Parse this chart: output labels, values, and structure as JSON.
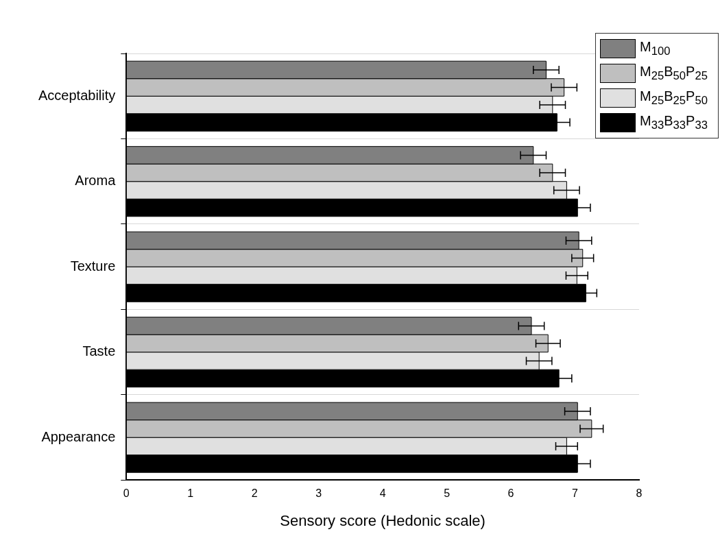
{
  "chart_data": {
    "type": "bar",
    "orientation": "horizontal",
    "xlabel": "Sensory score (Hedonic scale)",
    "categories": [
      "Acceptability",
      "Aroma",
      "Texture",
      "Taste",
      "Appearance"
    ],
    "series": [
      {
        "name": "M$_{100}$",
        "color": "#808080",
        "values": [
          6.55,
          6.35,
          7.06,
          6.32,
          7.04
        ],
        "errors": [
          0.2,
          0.2,
          0.2,
          0.2,
          0.2
        ]
      },
      {
        "name": "M$_{25}$B$_{50}$P$_{25}$",
        "color": "#bfbfbf",
        "values": [
          6.83,
          6.65,
          7.12,
          6.58,
          7.26
        ],
        "errors": [
          0.2,
          0.2,
          0.17,
          0.19,
          0.18
        ]
      },
      {
        "name": "M$_{25}$B$_{25}$P$_{50}$",
        "color": "#e0e0e0",
        "values": [
          6.65,
          6.87,
          7.03,
          6.44,
          6.87
        ],
        "errors": [
          0.2,
          0.2,
          0.17,
          0.2,
          0.17
        ]
      },
      {
        "name": "M$_{33}$B$_{33}$P$_{33}$",
        "color": "#000000",
        "values": [
          6.72,
          7.04,
          7.17,
          6.75,
          7.04
        ],
        "errors": [
          0.2,
          0.2,
          0.17,
          0.2,
          0.2
        ]
      }
    ],
    "xlim": [
      0,
      8
    ],
    "xticks": [
      0,
      1,
      2,
      3,
      4,
      5,
      6,
      7,
      8
    ],
    "grid": "y",
    "legend": "top right"
  }
}
